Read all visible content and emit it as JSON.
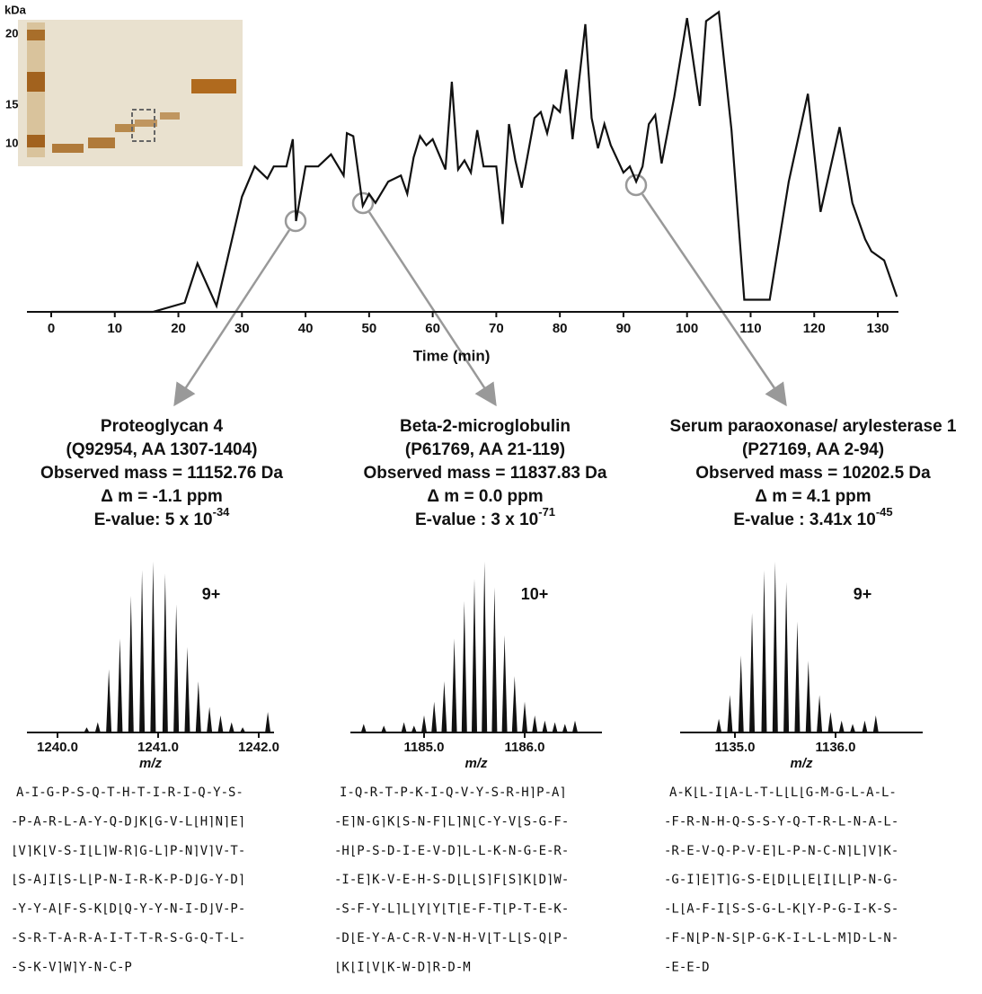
{
  "main_chart": {
    "type": "line",
    "x_label": "Time (min)",
    "xlim": [
      0,
      133
    ],
    "ylim": [
      0,
      100
    ],
    "xticks": [
      0,
      10,
      20,
      30,
      40,
      50,
      60,
      70,
      80,
      90,
      100,
      110,
      120,
      130
    ],
    "color": "#111111",
    "x": [
      0,
      16,
      21,
      23,
      26,
      30,
      32,
      34,
      35,
      37,
      38,
      38.5,
      40,
      42,
      44,
      46,
      46.5,
      47.5,
      49,
      50,
      51,
      53,
      55,
      56,
      57,
      58,
      59,
      60,
      62,
      63,
      64,
      65,
      66,
      67,
      68,
      69,
      70,
      71,
      72,
      73,
      74,
      76,
      77,
      78,
      79,
      80,
      81,
      82,
      84,
      85,
      86,
      87,
      88,
      90,
      91,
      92,
      93,
      94,
      95,
      96,
      98,
      100,
      102,
      103,
      105,
      107,
      109,
      113,
      116,
      119,
      121,
      124,
      126,
      128,
      129,
      131,
      133
    ],
    "values": [
      0,
      0,
      3,
      16,
      2,
      38,
      48,
      44,
      48,
      48,
      57,
      30,
      48,
      48,
      52,
      45,
      59,
      58,
      35,
      39,
      36,
      43,
      45,
      39,
      51,
      58,
      55,
      57,
      47,
      76,
      47,
      50,
      46,
      60,
      48,
      48,
      48,
      29,
      62,
      50,
      41,
      64,
      66,
      59,
      68,
      66,
      80,
      57,
      95,
      64,
      54,
      62,
      55,
      46,
      48,
      43,
      48,
      62,
      65,
      49,
      71,
      97,
      68,
      96,
      99,
      60,
      4,
      4,
      43,
      72,
      33,
      61,
      36,
      24,
      20,
      17,
      5
    ]
  },
  "gel": {
    "unit": "kDa",
    "markers": [
      "20",
      "15",
      "10"
    ]
  },
  "panels": [
    {
      "type": "spectrum",
      "title": [
        "Proteoglycan 4",
        "(Q92954, AA 1307-1404)",
        "Observed mass = 11152.76 Da",
        "Δ m = -1.1 ppm"
      ],
      "evalue": "E-value: 5 x 10",
      "evalue_exp": "-34",
      "charge": "9+",
      "x_label": "m/z",
      "xlim": [
        1239.95,
        1242.15
      ],
      "ylim": [
        0,
        100
      ],
      "xticks": [
        {
          "value": 1240,
          "label": "1240.0"
        },
        {
          "value": 1241,
          "label": "1241.0"
        },
        {
          "value": 1242,
          "label": "1242.0"
        }
      ],
      "x": [
        1240.29,
        1240.4,
        1240.51,
        1240.62,
        1240.73,
        1240.84,
        1240.95,
        1241.07,
        1241.18,
        1241.29,
        1241.4,
        1241.51,
        1241.62,
        1241.73,
        1241.84,
        1242.09
      ],
      "values": [
        3,
        6,
        37,
        55,
        80,
        95,
        100,
        93,
        75,
        50,
        30,
        15,
        10,
        6,
        3,
        12
      ],
      "sequence": [
        "A-I-G-P-S-Q-T-H-T-I-R-I-Q-Y-S-",
        "-P-A-R-L-A-Y-Q-D⌋K⌊G-V-L⌊H⌉N⌉E⌉",
        "⌊V⌉K⌊V-S-I⌊L⌉W-R⌉G-L⌉P-N⌉V⌉V-T-",
        "⌊S-A⌋I⌊S-L⌊P-N-I-R-K-P-D⌋G-Y-D⌉",
        "-Y-Y-A⌊F-S-K⌊D⌊Q-Y-Y-N-I-D⌋V-P-",
        "-S-R-T-A-R-A-I-T-T-R-S-G-Q-T-L-",
        "-S-K-V⌉W⌉Y-N-C-P"
      ]
    },
    {
      "type": "spectrum",
      "title": [
        "Beta-2-microglobulin",
        "(P61769, AA 21-119)",
        "Observed mass = 11837.83 Da",
        "Δ m = 0.0 ppm"
      ],
      "evalue": "E-value : 3 x 10",
      "evalue_exp": "-71",
      "charge": "10+",
      "x_label": "m/z",
      "xlim": [
        1184.35,
        1186.55
      ],
      "ylim": [
        0,
        100
      ],
      "xticks": [
        {
          "value": 1185,
          "label": "1185.0"
        },
        {
          "value": 1186,
          "label": "1186.0"
        }
      ],
      "x": [
        1184.4,
        1184.6,
        1184.8,
        1184.9,
        1185.0,
        1185.1,
        1185.2,
        1185.3,
        1185.4,
        1185.5,
        1185.6,
        1185.7,
        1185.8,
        1185.9,
        1186.0,
        1186.1,
        1186.2,
        1186.3,
        1186.4,
        1186.5
      ],
      "values": [
        5,
        4,
        6,
        4,
        10,
        18,
        30,
        55,
        77,
        90,
        100,
        85,
        57,
        33,
        18,
        10,
        7,
        6,
        5,
        7
      ],
      "sequence": [
        "I-Q-R-T-P-K-I-Q-V-Y-S-R-H⌉P-A⌉",
        "-E⌉N-G⌉K⌊S-N-F⌉L⌉N⌊C-Y-V⌊S-G-F-",
        "-H⌊P-S-D-I-E-V-D⌉L-L-K-N-G-E-R-",
        "-I-E⌉K-V-E-H-S-D⌊L⌊S⌉F⌊S⌉K⌊D⌉W-",
        "-S-F-Y-L⌉L⌊Y⌊Y⌊T⌊E-F-T⌊P-T-E-K-",
        "-D⌊E-Y-A-C-R-V-N-H-V⌊T-L⌊S-Q⌊P-",
        "⌊K⌊I⌊V⌊K-W-D⌉R-D-M"
      ]
    },
    {
      "type": "spectrum",
      "title": [
        "Serum paraoxonase/ arylesterase 1",
        "(P27169, AA 2-94)",
        "Observed mass = 10202.5 Da",
        "Δ m = 4.1 ppm"
      ],
      "evalue": "E-value : 3.41x 10",
      "evalue_exp": "-45",
      "charge": "9+",
      "x_label": "m/z",
      "xlim": [
        1134.35,
        1136.55
      ],
      "ylim": [
        0,
        100
      ],
      "xticks": [
        {
          "value": 1135,
          "label": "1135.0"
        },
        {
          "value": 1136,
          "label": "1136.0"
        }
      ],
      "x": [
        1134.84,
        1134.95,
        1135.06,
        1135.17,
        1135.29,
        1135.4,
        1135.51,
        1135.62,
        1135.73,
        1135.84,
        1135.95,
        1136.06,
        1136.17,
        1136.29,
        1136.4
      ],
      "values": [
        8,
        22,
        45,
        70,
        95,
        100,
        88,
        65,
        42,
        22,
        12,
        7,
        5,
        7,
        10
      ],
      "sequence": [
        "A-K⌊L-I⌊A-L-T-L⌊L⌊G-M-G-L-A-L-",
        "-F-R-N-H-Q-S-S-Y-Q-T-R-L-N-A-L-",
        "-R-E-V-Q-P-V-E⌉L-P-N-C-N⌉L⌉V⌉K-",
        "-G-I⌉E⌉T⌉G-S-E⌊D⌊L⌊E⌊I⌊L⌊P-N-G-",
        "-L⌊A-F-I⌊S-S-G-L-K⌊Y-P-G-I-K-S-",
        "-F-N⌊P-N-S⌊P-G-K-I-L-L-M⌉D-L-N-",
        "-E-E-D"
      ]
    }
  ]
}
